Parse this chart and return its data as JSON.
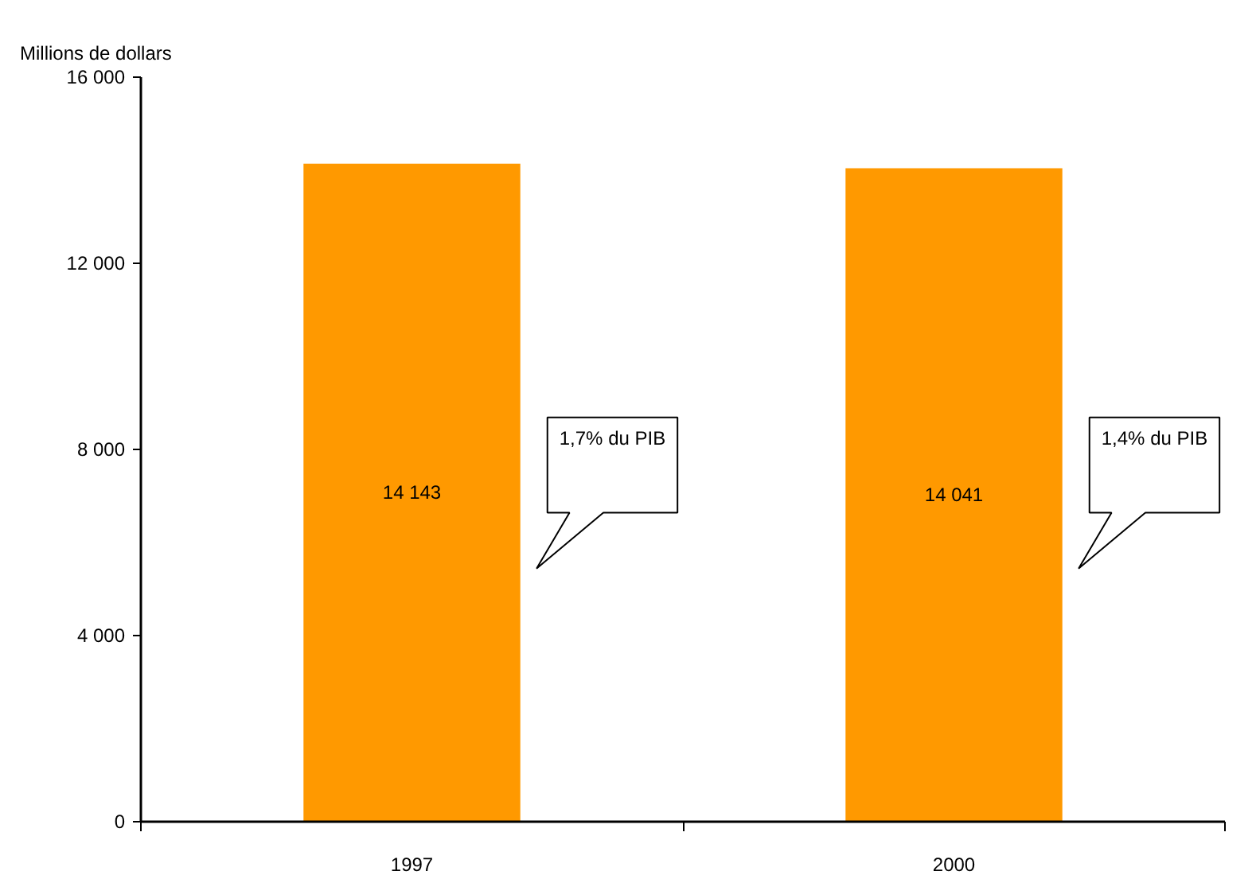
{
  "chart_data": {
    "type": "bar",
    "ylabel": "Millions de dollars",
    "categories": [
      "1997",
      "2000"
    ],
    "values": [
      14143,
      14041
    ],
    "color": "#ff9900",
    "value_labels": [
      "14 143",
      "14 041"
    ],
    "ylim": [
      0,
      16000
    ],
    "yticks": [
      0,
      {
        "value": 4000,
        "label": "4 000"
      },
      {
        "value": 8000,
        "label": "8 000"
      },
      {
        "value": 12000,
        "label": "12 000"
      },
      {
        "value": 16000,
        "label": "16 000"
      }
    ],
    "annotations": [
      "1,7% du PIB",
      "1,4% du PIB"
    ]
  }
}
